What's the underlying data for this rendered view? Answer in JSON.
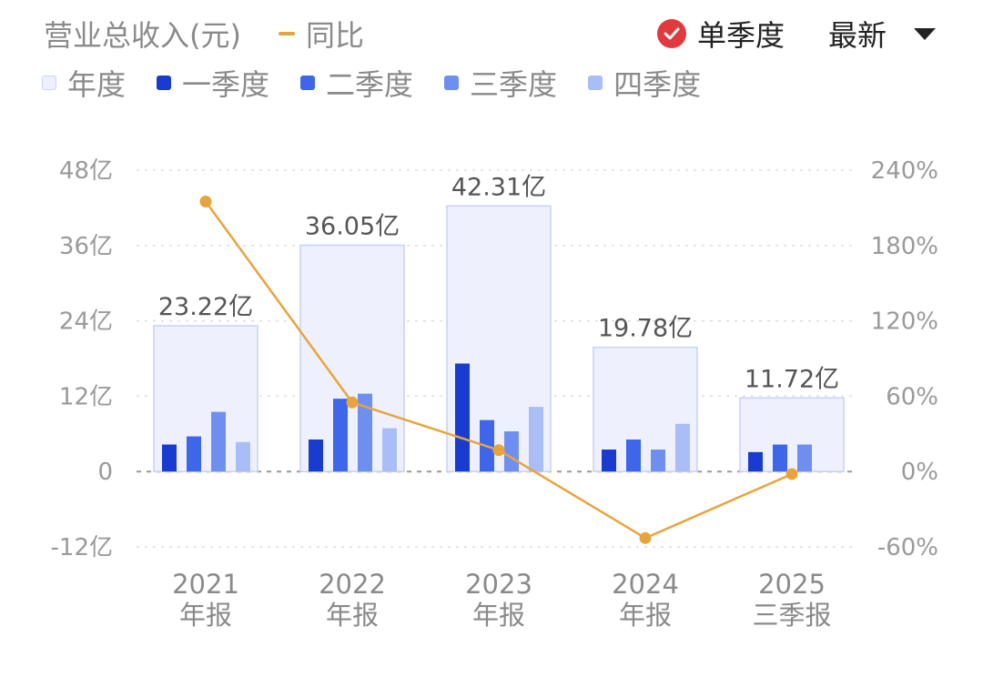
{
  "header": {
    "title": "营业总收入(元)",
    "yoy_label": "同比",
    "single_quarter_label": "单季度",
    "sort_label": "最新"
  },
  "legend": [
    {
      "label": "年度",
      "color": "#eef1fd"
    },
    {
      "label": "一季度",
      "color": "#1a3bcf"
    },
    {
      "label": "二季度",
      "color": "#3d66ea"
    },
    {
      "label": "三季度",
      "color": "#6f8ff0"
    },
    {
      "label": "四季度",
      "color": "#a9bdf6"
    }
  ],
  "colors": {
    "annual_fill": "#eef1fd",
    "annual_stroke": "#c7d2f3",
    "yoy_line": "#e8a43c",
    "check": "#e03a3e"
  },
  "chart_data": {
    "type": "bar",
    "categories": [
      {
        "year": "2021",
        "period": "年报"
      },
      {
        "year": "2022",
        "period": "年报"
      },
      {
        "year": "2023",
        "period": "年报"
      },
      {
        "year": "2024",
        "period": "年报"
      },
      {
        "year": "2025",
        "period": "三季报"
      }
    ],
    "annual": [
      23.22,
      36.05,
      42.31,
      19.78,
      11.72
    ],
    "annual_labels": [
      "23.22亿",
      "36.05亿",
      "42.31亿",
      "19.78亿",
      "11.72亿"
    ],
    "quarters": [
      {
        "name": "一季度",
        "values": [
          4.3,
          5.1,
          17.2,
          3.5,
          3.1
        ]
      },
      {
        "name": "二季度",
        "values": [
          5.6,
          11.6,
          8.2,
          5.1,
          4.3
        ]
      },
      {
        "name": "三季度",
        "values": [
          9.5,
          12.4,
          6.4,
          3.5,
          4.3
        ]
      },
      {
        "name": "四季度",
        "values": [
          4.7,
          6.9,
          10.3,
          7.6,
          null
        ]
      }
    ],
    "yoy": {
      "name": "同比",
      "values": [
        215,
        55,
        17,
        -53,
        -2
      ]
    },
    "y_left": {
      "min": -12,
      "max": 48,
      "ticks": [
        48,
        36,
        24,
        12,
        0,
        -12
      ],
      "tick_labels": [
        "48亿",
        "36亿",
        "24亿",
        "12亿",
        "0",
        "-12亿"
      ]
    },
    "y_right": {
      "min": -60,
      "max": 240,
      "ticks": [
        240,
        180,
        120,
        60,
        0,
        -60
      ],
      "tick_labels": [
        "240%",
        "180%",
        "120%",
        "60%",
        "0%",
        "-60%"
      ]
    },
    "grid": true
  }
}
